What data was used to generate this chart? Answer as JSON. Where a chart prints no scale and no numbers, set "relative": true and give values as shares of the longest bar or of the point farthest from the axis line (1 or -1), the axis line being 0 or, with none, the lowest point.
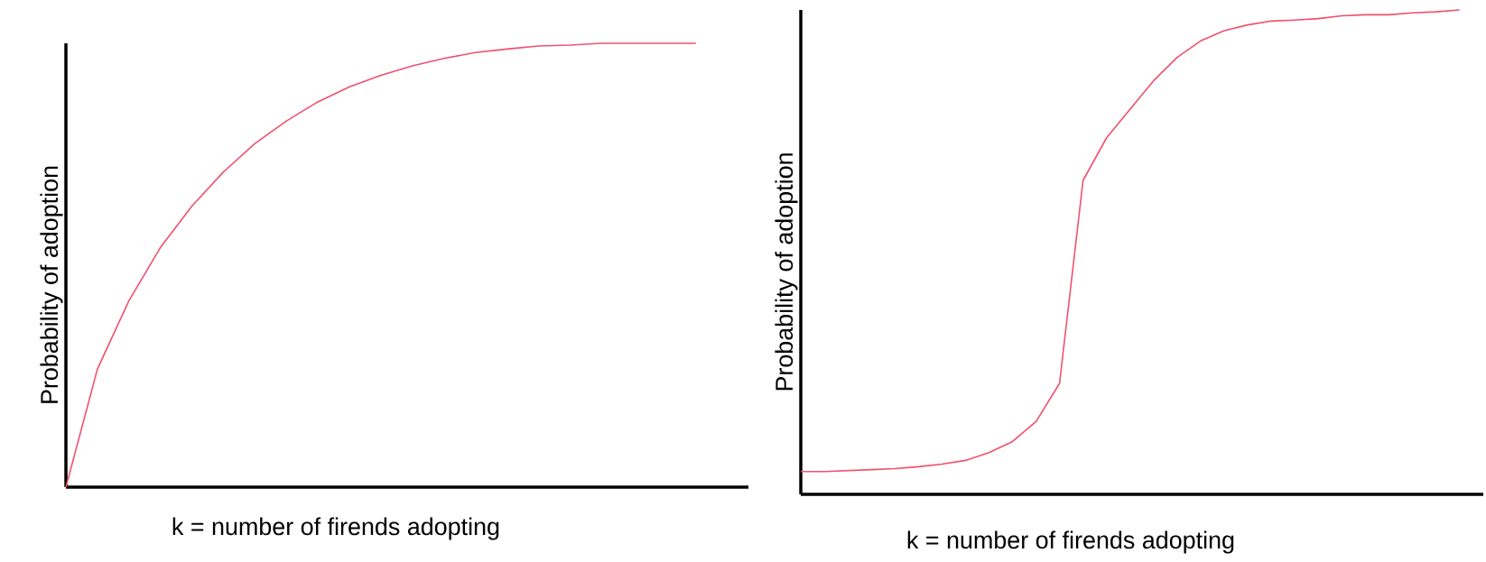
{
  "chart_data": [
    {
      "type": "line",
      "relative": true,
      "xlabel": "k = number of firends adopting",
      "ylabel": "Probability of adoption",
      "color": "#f0506e",
      "categories": [
        null,
        null,
        null,
        null,
        null,
        null,
        null,
        null,
        null,
        null,
        null,
        null,
        null,
        null,
        null,
        null,
        null,
        null,
        null,
        null,
        null
      ],
      "values": [
        0,
        0.266,
        0.42,
        0.54,
        0.633,
        0.71,
        0.774,
        0.825,
        0.868,
        0.902,
        0.928,
        0.949,
        0.966,
        0.979,
        0.987,
        0.994,
        0.996,
        1,
        1,
        1,
        1
      ]
    },
    {
      "type": "line",
      "relative": true,
      "xlabel": "k = number of firends adopting",
      "ylabel": "Probability of adoption",
      "color": "#f0506e",
      "categories": [
        null,
        null,
        null,
        null,
        null,
        null,
        null,
        null,
        null,
        null,
        null,
        null,
        null,
        null,
        null,
        null,
        null,
        null,
        null,
        null,
        null,
        null,
        null,
        null,
        null,
        null,
        null,
        null,
        null
      ],
      "values": [
        0.047,
        0.047,
        0.049,
        0.051,
        0.053,
        0.057,
        0.0625,
        0.07,
        0.086,
        0.109,
        0.15,
        0.229,
        0.648,
        0.736,
        0.795,
        0.854,
        0.902,
        0.936,
        0.957,
        0.969,
        0.977,
        0.979,
        0.982,
        0.988,
        0.99,
        0.99,
        0.994,
        0.996,
        1
      ]
    }
  ]
}
